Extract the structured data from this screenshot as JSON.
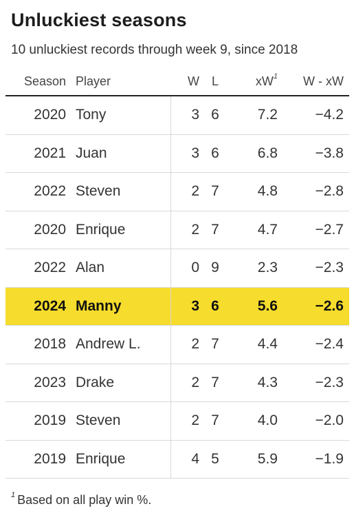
{
  "title": "Unluckiest seasons",
  "subtitle": "10 unluckiest records through week 9, since 2018",
  "footnote_marker": "1",
  "footnote_text": "Based on all play win %.",
  "highlight_color": "#f6dc2c",
  "chart_data": {
    "type": "table",
    "title": "Unluckiest seasons",
    "subtitle": "10 unluckiest records through week 9, since 2018",
    "columns": [
      "Season",
      "Player",
      "W",
      "L",
      "xW",
      "W - xW"
    ],
    "header_superscripts": {
      "xW": "1"
    },
    "rows": [
      {
        "season": "2020",
        "player": "Tony",
        "w": "3",
        "l": "6",
        "xw": "7.2",
        "diff": "−4.2",
        "highlight": false
      },
      {
        "season": "2021",
        "player": "Juan",
        "w": "3",
        "l": "6",
        "xw": "6.8",
        "diff": "−3.8",
        "highlight": false
      },
      {
        "season": "2022",
        "player": "Steven",
        "w": "2",
        "l": "7",
        "xw": "4.8",
        "diff": "−2.8",
        "highlight": false
      },
      {
        "season": "2020",
        "player": "Enrique",
        "w": "2",
        "l": "7",
        "xw": "4.7",
        "diff": "−2.7",
        "highlight": false
      },
      {
        "season": "2022",
        "player": "Alan",
        "w": "0",
        "l": "9",
        "xw": "2.3",
        "diff": "−2.3",
        "highlight": false
      },
      {
        "season": "2024",
        "player": "Manny",
        "w": "3",
        "l": "6",
        "xw": "5.6",
        "diff": "−2.6",
        "highlight": true
      },
      {
        "season": "2018",
        "player": "Andrew L.",
        "w": "2",
        "l": "7",
        "xw": "4.4",
        "diff": "−2.4",
        "highlight": false
      },
      {
        "season": "2023",
        "player": "Drake",
        "w": "2",
        "l": "7",
        "xw": "4.3",
        "diff": "−2.3",
        "highlight": false
      },
      {
        "season": "2019",
        "player": "Steven",
        "w": "2",
        "l": "7",
        "xw": "4.0",
        "diff": "−2.0",
        "highlight": false
      },
      {
        "season": "2019",
        "player": "Enrique",
        "w": "4",
        "l": "5",
        "xw": "5.9",
        "diff": "−1.9",
        "highlight": false
      }
    ]
  }
}
